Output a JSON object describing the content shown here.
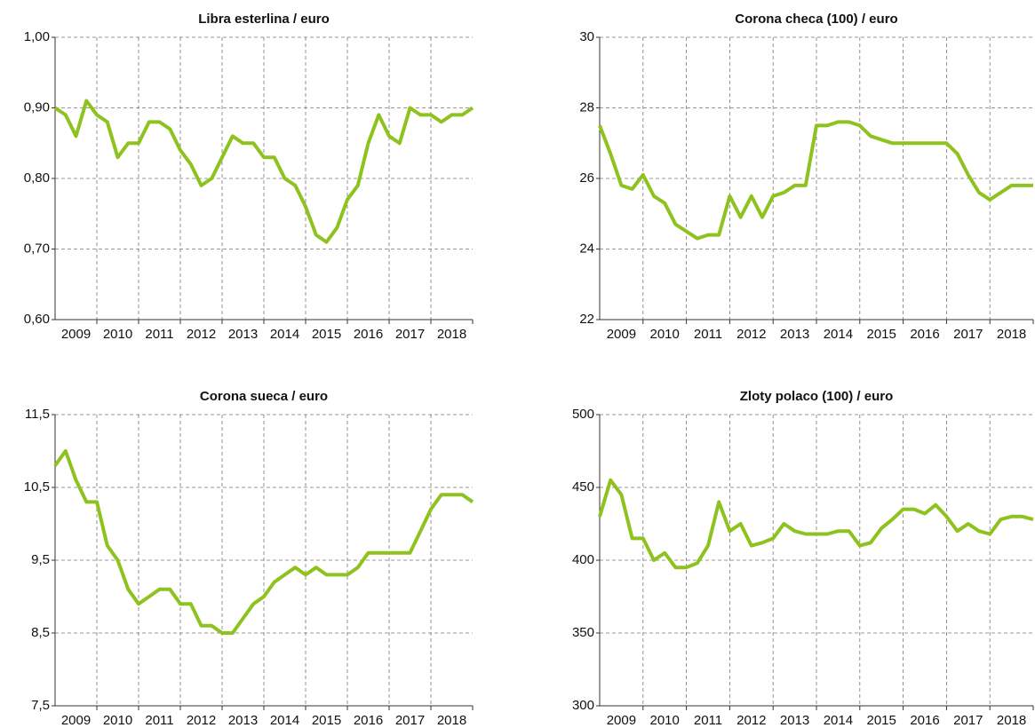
{
  "chart_data": [
    {
      "type": "line",
      "title": "Libra esterlina / euro",
      "color": "#8dc21f",
      "x": [
        2009.0,
        2009.25,
        2009.5,
        2009.75,
        2010.0,
        2010.25,
        2010.5,
        2010.75,
        2011.0,
        2011.25,
        2011.5,
        2011.75,
        2012.0,
        2012.25,
        2012.5,
        2012.75,
        2013.0,
        2013.25,
        2013.5,
        2013.75,
        2014.0,
        2014.25,
        2014.5,
        2014.75,
        2015.0,
        2015.25,
        2015.5,
        2015.75,
        2016.0,
        2016.25,
        2016.5,
        2016.75,
        2017.0,
        2017.25,
        2017.5,
        2017.75,
        2018.0,
        2018.25,
        2018.5,
        2018.75,
        2019.0
      ],
      "values": [
        0.9,
        0.89,
        0.86,
        0.91,
        0.89,
        0.88,
        0.83,
        0.85,
        0.85,
        0.88,
        0.88,
        0.87,
        0.84,
        0.82,
        0.79,
        0.8,
        0.83,
        0.86,
        0.85,
        0.85,
        0.83,
        0.83,
        0.8,
        0.79,
        0.76,
        0.72,
        0.71,
        0.73,
        0.77,
        0.79,
        0.85,
        0.89,
        0.86,
        0.85,
        0.9,
        0.89,
        0.89,
        0.88,
        0.89,
        0.89,
        0.9
      ],
      "xlim": [
        2009,
        2019
      ],
      "ylim": [
        0.6,
        1.0
      ],
      "yticks": [
        {
          "value": 0.6,
          "label": "0,60"
        },
        {
          "value": 0.7,
          "label": "0,70"
        },
        {
          "value": 0.8,
          "label": "0,80"
        },
        {
          "value": 0.9,
          "label": "0,90"
        },
        {
          "value": 1.0,
          "label": "1,00"
        }
      ],
      "xticks": [
        {
          "value": 2009.5,
          "label": "2009"
        },
        {
          "value": 2010.5,
          "label": "2010"
        },
        {
          "value": 2011.5,
          "label": "2011"
        },
        {
          "value": 2012.5,
          "label": "2012"
        },
        {
          "value": 2013.5,
          "label": "2013"
        },
        {
          "value": 2014.5,
          "label": "2014"
        },
        {
          "value": 2015.5,
          "label": "2015"
        },
        {
          "value": 2016.5,
          "label": "2016"
        },
        {
          "value": 2017.5,
          "label": "2017"
        },
        {
          "value": 2018.5,
          "label": "2018"
        }
      ],
      "xgrid": [
        2010,
        2011,
        2012,
        2013,
        2014,
        2015,
        2016,
        2017,
        2018
      ],
      "grid": true
    },
    {
      "type": "line",
      "title": "Corona checa (100) / euro",
      "color": "#8dc21f",
      "x": [
        2009.0,
        2009.25,
        2009.5,
        2009.75,
        2010.0,
        2010.25,
        2010.5,
        2010.75,
        2011.0,
        2011.25,
        2011.5,
        2011.75,
        2012.0,
        2012.25,
        2012.5,
        2012.75,
        2013.0,
        2013.25,
        2013.5,
        2013.75,
        2014.0,
        2014.25,
        2014.5,
        2014.75,
        2015.0,
        2015.25,
        2015.5,
        2015.75,
        2016.0,
        2016.25,
        2016.5,
        2016.75,
        2017.0,
        2017.25,
        2017.5,
        2017.75,
        2018.0,
        2018.25,
        2018.5,
        2018.75,
        2019.0
      ],
      "values": [
        27.5,
        26.7,
        25.8,
        25.7,
        26.1,
        25.5,
        25.3,
        24.7,
        24.5,
        24.3,
        24.4,
        24.4,
        25.5,
        24.9,
        25.5,
        24.9,
        25.5,
        25.6,
        25.8,
        25.8,
        27.5,
        27.5,
        27.6,
        27.6,
        27.5,
        27.2,
        27.1,
        27.0,
        27.0,
        27.0,
        27.0,
        27.0,
        27.0,
        26.7,
        26.1,
        25.6,
        25.4,
        25.6,
        25.8,
        25.8,
        25.8
      ],
      "xlim": [
        2009,
        2019
      ],
      "ylim": [
        22,
        30
      ],
      "yticks": [
        22,
        24,
        26,
        28,
        30
      ],
      "xticks": [
        {
          "value": 2009.5,
          "label": "2009"
        },
        {
          "value": 2010.5,
          "label": "2010"
        },
        {
          "value": 2011.5,
          "label": "2011"
        },
        {
          "value": 2012.5,
          "label": "2012"
        },
        {
          "value": 2013.5,
          "label": "2013"
        },
        {
          "value": 2014.5,
          "label": "2014"
        },
        {
          "value": 2015.5,
          "label": "2015"
        },
        {
          "value": 2016.5,
          "label": "2016"
        },
        {
          "value": 2017.5,
          "label": "2017"
        },
        {
          "value": 2018.5,
          "label": "2018"
        }
      ],
      "xgrid": [
        2010,
        2011,
        2012,
        2013,
        2014,
        2015,
        2016,
        2017,
        2018
      ],
      "grid": true
    },
    {
      "type": "line",
      "title": "Corona sueca / euro",
      "color": "#8dc21f",
      "x": [
        2009.0,
        2009.25,
        2009.5,
        2009.75,
        2010.0,
        2010.25,
        2010.5,
        2010.75,
        2011.0,
        2011.25,
        2011.5,
        2011.75,
        2012.0,
        2012.25,
        2012.5,
        2012.75,
        2013.0,
        2013.25,
        2013.5,
        2013.75,
        2014.0,
        2014.25,
        2014.5,
        2014.75,
        2015.0,
        2015.25,
        2015.5,
        2015.75,
        2016.0,
        2016.25,
        2016.5,
        2016.75,
        2017.0,
        2017.25,
        2017.5,
        2017.75,
        2018.0,
        2018.25,
        2018.5,
        2018.75,
        2019.0
      ],
      "values": [
        10.8,
        11.0,
        10.6,
        10.3,
        10.3,
        9.7,
        9.5,
        9.1,
        8.9,
        9.0,
        9.1,
        9.1,
        8.9,
        8.9,
        8.6,
        8.6,
        8.5,
        8.5,
        8.7,
        8.9,
        9.0,
        9.2,
        9.3,
        9.4,
        9.3,
        9.4,
        9.3,
        9.3,
        9.3,
        9.4,
        9.6,
        9.6,
        9.6,
        9.6,
        9.6,
        9.9,
        10.2,
        10.4,
        10.4,
        10.4,
        10.3
      ],
      "xlim": [
        2009,
        2019
      ],
      "ylim": [
        7.5,
        11.5
      ],
      "yticks": [
        {
          "value": 7.5,
          "label": "7,5"
        },
        {
          "value": 8.5,
          "label": "8,5"
        },
        {
          "value": 9.5,
          "label": "9,5"
        },
        {
          "value": 10.5,
          "label": "10,5"
        },
        {
          "value": 11.5,
          "label": "11,5"
        }
      ],
      "xticks": [
        {
          "value": 2009.5,
          "label": "2009"
        },
        {
          "value": 2010.5,
          "label": "2010"
        },
        {
          "value": 2011.5,
          "label": "2011"
        },
        {
          "value": 2012.5,
          "label": "2012"
        },
        {
          "value": 2013.5,
          "label": "2013"
        },
        {
          "value": 2014.5,
          "label": "2014"
        },
        {
          "value": 2015.5,
          "label": "2015"
        },
        {
          "value": 2016.5,
          "label": "2016"
        },
        {
          "value": 2017.5,
          "label": "2017"
        },
        {
          "value": 2018.5,
          "label": "2018"
        }
      ],
      "xgrid": [
        2010,
        2011,
        2012,
        2013,
        2014,
        2015,
        2016,
        2017,
        2018
      ],
      "grid": true
    },
    {
      "type": "line",
      "title": "Zloty polaco (100) / euro",
      "color": "#8dc21f",
      "x": [
        2009.0,
        2009.25,
        2009.5,
        2009.75,
        2010.0,
        2010.25,
        2010.5,
        2010.75,
        2011.0,
        2011.25,
        2011.5,
        2011.75,
        2012.0,
        2012.25,
        2012.5,
        2012.75,
        2013.0,
        2013.25,
        2013.5,
        2013.75,
        2014.0,
        2014.25,
        2014.5,
        2014.75,
        2015.0,
        2015.25,
        2015.5,
        2015.75,
        2016.0,
        2016.25,
        2016.5,
        2016.75,
        2017.0,
        2017.25,
        2017.5,
        2017.75,
        2018.0,
        2018.25,
        2018.5,
        2018.75,
        2019.0
      ],
      "values": [
        430,
        455,
        445,
        415,
        415,
        400,
        405,
        395,
        395,
        398,
        410,
        440,
        420,
        425,
        410,
        412,
        415,
        425,
        420,
        418,
        418,
        418,
        420,
        420,
        410,
        412,
        422,
        428,
        435,
        435,
        432,
        438,
        430,
        420,
        425,
        420,
        418,
        428,
        430,
        430,
        428
      ],
      "xlim": [
        2009,
        2019
      ],
      "ylim": [
        300,
        500
      ],
      "yticks": [
        300,
        350,
        400,
        450,
        500
      ],
      "xticks": [
        {
          "value": 2009.5,
          "label": "2009"
        },
        {
          "value": 2010.5,
          "label": "2010"
        },
        {
          "value": 2011.5,
          "label": "2011"
        },
        {
          "value": 2012.5,
          "label": "2012"
        },
        {
          "value": 2013.5,
          "label": "2013"
        },
        {
          "value": 2014.5,
          "label": "2014"
        },
        {
          "value": 2015.5,
          "label": "2015"
        },
        {
          "value": 2016.5,
          "label": "2016"
        },
        {
          "value": 2017.5,
          "label": "2017"
        },
        {
          "value": 2018.5,
          "label": "2018"
        }
      ],
      "xgrid": [
        2010,
        2011,
        2012,
        2013,
        2014,
        2015,
        2016,
        2017,
        2018
      ],
      "grid": true
    }
  ]
}
